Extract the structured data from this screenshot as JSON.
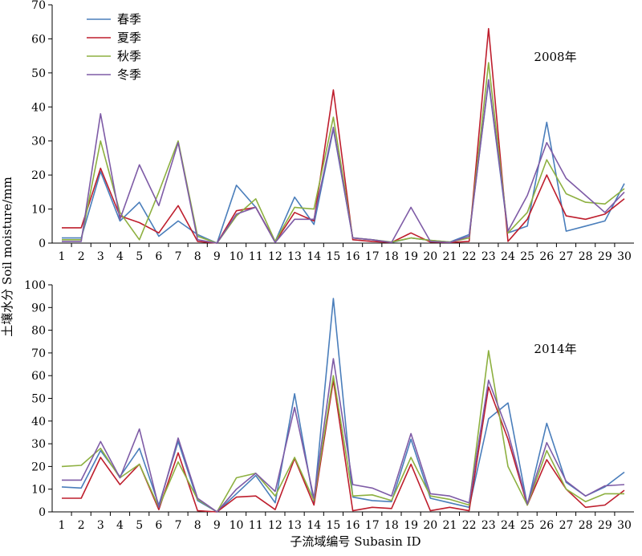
{
  "figure": {
    "ylabel": "土壤水分 Soil moisture/mm",
    "xlabel": "子流域编号 Subasin ID"
  },
  "legend": {
    "entries": [
      {
        "name": "春季",
        "color": "#4a7ebb"
      },
      {
        "name": "夏季",
        "color": "#be1e2d"
      },
      {
        "name": "秋季",
        "color": "#8db040"
      },
      {
        "name": "冬季",
        "color": "#7e5ba6"
      }
    ],
    "placement": "top-left"
  },
  "chart_data": [
    {
      "type": "line",
      "panel_label": "2008年",
      "x": [
        1,
        2,
        3,
        4,
        5,
        6,
        7,
        8,
        9,
        10,
        11,
        12,
        13,
        14,
        15,
        16,
        17,
        18,
        19,
        20,
        21,
        22,
        23,
        24,
        25,
        26,
        27,
        28,
        29,
        30
      ],
      "ylim": [
        0,
        70
      ],
      "yticks": [
        0,
        10,
        20,
        30,
        40,
        50,
        60,
        70
      ],
      "grid": false,
      "series": [
        {
          "name": "春季",
          "color": "#4a7ebb",
          "values": [
            1.5,
            1.5,
            21,
            6.5,
            12,
            2,
            6.5,
            2.5,
            0,
            17,
            10.5,
            0.5,
            13.5,
            5.5,
            33.5,
            1.5,
            1,
            0.2,
            1.5,
            0.8,
            0.3,
            2.5,
            47.5,
            3,
            5,
            35.5,
            3.5,
            5,
            6.5,
            17.5
          ]
        },
        {
          "name": "夏季",
          "color": "#be1e2d",
          "values": [
            4.5,
            4.5,
            22,
            8,
            6,
            3,
            11,
            0.5,
            0,
            9.5,
            10.5,
            0.3,
            9,
            6.5,
            45,
            1,
            0.5,
            0.2,
            3,
            0.3,
            0.2,
            0.5,
            63,
            0.5,
            7,
            20,
            8,
            7,
            8.5,
            13
          ]
        },
        {
          "name": "秋季",
          "color": "#8db040",
          "values": [
            1,
            1,
            30,
            9,
            1,
            15,
            30,
            2,
            0,
            8,
            13,
            0.5,
            10.5,
            10,
            37,
            1.5,
            1,
            0.3,
            1.5,
            0.8,
            0.3,
            1.5,
            53,
            3,
            9,
            24.5,
            14.5,
            12,
            11.5,
            16
          ]
        },
        {
          "name": "冬季",
          "color": "#7e5ba6",
          "values": [
            0.5,
            0.5,
            38,
            7,
            23,
            11,
            29.5,
            1,
            0,
            8.5,
            10.5,
            0.2,
            7,
            7,
            34,
            1.5,
            1,
            0.2,
            10.5,
            0.5,
            0.2,
            2,
            48,
            3.5,
            14,
            29.5,
            19,
            14,
            9,
            15
          ]
        }
      ]
    },
    {
      "type": "line",
      "panel_label": "2014年",
      "x": [
        1,
        2,
        3,
        4,
        5,
        6,
        7,
        8,
        9,
        10,
        11,
        12,
        13,
        14,
        15,
        16,
        17,
        18,
        19,
        20,
        21,
        22,
        23,
        24,
        25,
        26,
        27,
        28,
        29,
        30
      ],
      "ylim": [
        0,
        100
      ],
      "yticks": [
        0,
        10,
        20,
        30,
        40,
        50,
        60,
        70,
        80,
        90,
        100
      ],
      "grid": false,
      "series": [
        {
          "name": "春季",
          "color": "#4a7ebb",
          "values": [
            11,
            10.5,
            27,
            15.5,
            28,
            3,
            31,
            5,
            0,
            8,
            16,
            4,
            52,
            4,
            94,
            6.5,
            5,
            4.5,
            32,
            6,
            4,
            2,
            41,
            48,
            3,
            39,
            13,
            7,
            11,
            17.5
          ]
        },
        {
          "name": "夏季",
          "color": "#be1e2d",
          "values": [
            6,
            6,
            24,
            12,
            21,
            1,
            26,
            0.5,
            0,
            6.5,
            7,
            1,
            23.5,
            3,
            58,
            0.5,
            2,
            1.5,
            21,
            0.5,
            2,
            0.5,
            55,
            32,
            3,
            23,
            10,
            2,
            3,
            9.5
          ]
        },
        {
          "name": "秋季",
          "color": "#8db040",
          "values": [
            20,
            20.5,
            28,
            15,
            21,
            2,
            22,
            5.5,
            0,
            15,
            17,
            7,
            24,
            5,
            60,
            7,
            7.5,
            5,
            24,
            7,
            5.5,
            3,
            71,
            20,
            3,
            27,
            10,
            4.5,
            8,
            8
          ]
        },
        {
          "name": "冬季",
          "color": "#7e5ba6",
          "values": [
            14,
            14,
            31,
            15,
            36.5,
            2,
            32.5,
            6,
            0,
            10,
            17,
            9,
            46,
            6,
            67.5,
            12,
            10.5,
            7,
            34.5,
            8,
            7,
            4,
            58,
            35,
            3.5,
            30.5,
            13.5,
            7,
            11.5,
            12
          ]
        }
      ]
    }
  ]
}
